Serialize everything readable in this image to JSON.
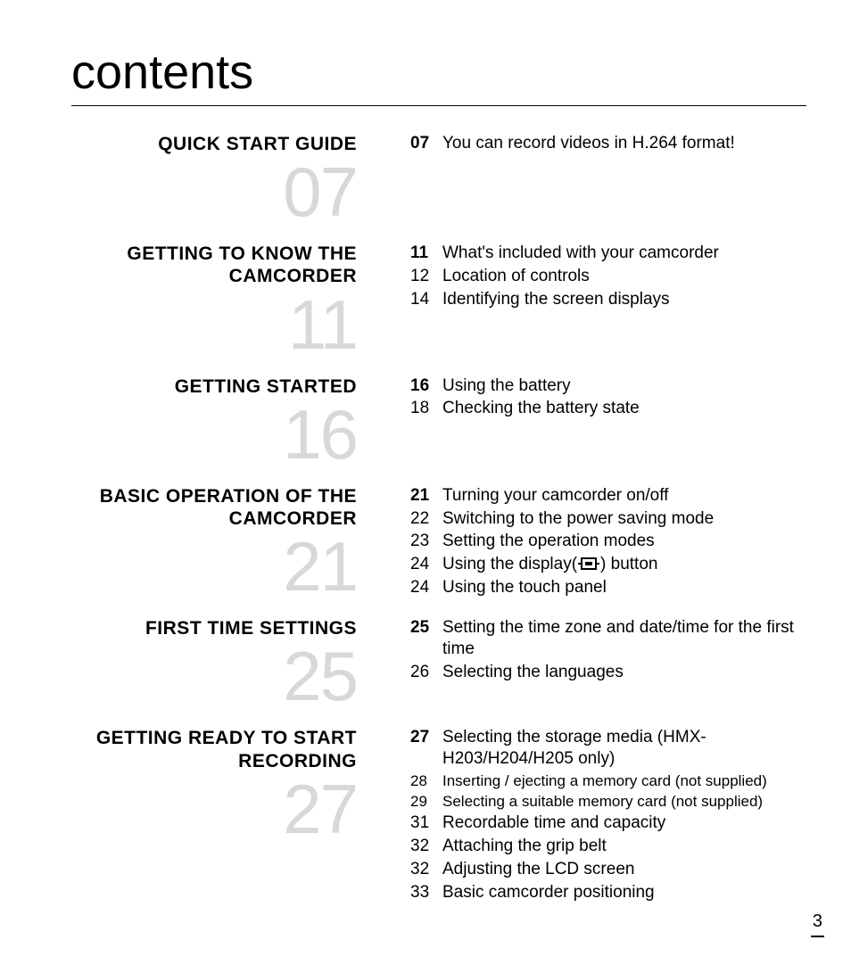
{
  "title": "contents",
  "page_number": "3",
  "colors": {
    "text": "#000000",
    "bignum": "#d8d8d8",
    "background": "#ffffff",
    "rule": "#000000"
  },
  "sections": [
    {
      "heading": "QUICK START GUIDE",
      "number": "07",
      "entries": [
        {
          "page": "07",
          "text": "You can record videos in H.264 format!",
          "bold_page": true
        }
      ]
    },
    {
      "heading": "GETTING TO KNOW THE CAMCORDER",
      "number": "11",
      "entries": [
        {
          "page": "11",
          "text": "What's included with your camcorder",
          "bold_page": true
        },
        {
          "page": "12",
          "text": "Location of controls"
        },
        {
          "page": "14",
          "text": "Identifying the screen displays"
        }
      ]
    },
    {
      "heading": "GETTING STARTED",
      "number": "16",
      "entries": [
        {
          "page": "16",
          "text": "Using the battery",
          "bold_page": true
        },
        {
          "page": "18",
          "text": "Checking the battery state"
        }
      ]
    },
    {
      "heading": "BASIC OPERATION OF THE CAMCORDER",
      "number": "21",
      "entries": [
        {
          "page": "21",
          "text": "Turning your camcorder on/off",
          "bold_page": true
        },
        {
          "page": "22",
          "text": "Switching to the power saving mode"
        },
        {
          "page": "23",
          "text": "Setting the operation modes"
        },
        {
          "page": "24",
          "text_pre": "Using the display(",
          "text_post": ") button",
          "has_icon": true
        },
        {
          "page": "24",
          "text": "Using the touch panel"
        }
      ]
    },
    {
      "heading": "FIRST TIME SETTINGS",
      "number": "25",
      "entries": [
        {
          "page": "25",
          "text": "Setting the time zone and date/time for the first time",
          "bold_page": true
        },
        {
          "page": "26",
          "text": "Selecting the languages"
        }
      ]
    },
    {
      "heading": "GETTING READY TO START RECORDING",
      "number": "27",
      "entries": [
        {
          "page": "27",
          "text": "Selecting the storage media (HMX-H203/H204/H205 only)",
          "bold_page": true
        },
        {
          "page": "28",
          "text": "Inserting / ejecting a memory card (not supplied)",
          "small": true
        },
        {
          "page": "29",
          "text": "Selecting a suitable memory card (not supplied)",
          "small": true
        },
        {
          "page": "31",
          "text": "Recordable time and capacity"
        },
        {
          "page": "32",
          "text": "Attaching the grip belt"
        },
        {
          "page": "32",
          "text": "Adjusting the LCD screen"
        },
        {
          "page": "33",
          "text": "Basic camcorder positioning"
        }
      ]
    }
  ]
}
